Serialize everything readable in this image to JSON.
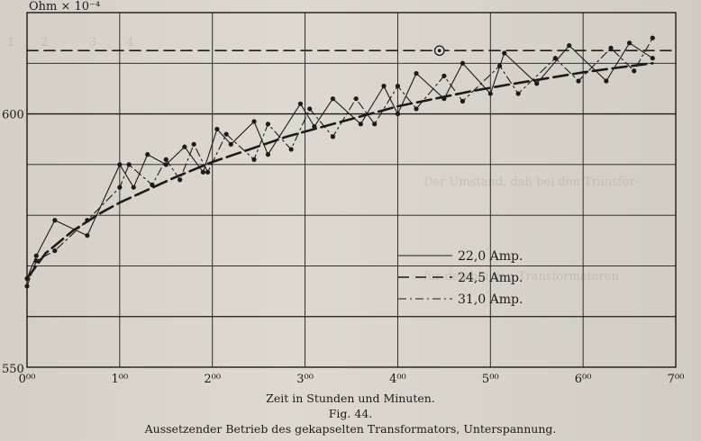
{
  "chart_data": {
    "type": "line",
    "ylabel": "Ohm × 10⁻⁴",
    "xlabel": "Zeit in Stunden und Minuten.",
    "xlim": [
      0,
      7
    ],
    "ylim": [
      550,
      620
    ],
    "y_ticks": [
      "550",
      "600"
    ],
    "x_ticks": [
      "0⁰⁰",
      "1⁰⁰",
      "2⁰⁰",
      "3⁰⁰",
      "4⁰⁰",
      "5⁰⁰",
      "6⁰⁰",
      "7⁰⁰"
    ],
    "grid": true,
    "legend_position": "right",
    "legend": [
      "22,0 Amp.",
      "24,5 Amp.",
      "31,0 Amp."
    ],
    "series": [
      {
        "name": "22,0 Amp.",
        "style": "solid",
        "marker": "dot",
        "x": [
          0.0,
          0.1,
          0.3,
          0.65,
          1.0,
          1.15,
          1.3,
          1.5,
          1.7,
          1.9,
          2.05,
          2.2,
          2.45,
          2.6,
          2.95,
          3.1,
          3.3,
          3.6,
          3.85,
          4.0,
          4.2,
          4.5,
          4.7,
          5.0,
          5.15,
          5.5,
          5.85,
          6.25,
          6.5,
          6.75
        ],
        "y": [
          567.5,
          572.0,
          579.0,
          576.0,
          590.0,
          585.5,
          592.0,
          590.0,
          593.5,
          588.5,
          597.0,
          594.0,
          598.5,
          592.0,
          602.0,
          597.5,
          603.0,
          598.0,
          605.5,
          600.0,
          608.0,
          603.0,
          610.0,
          604.0,
          612.0,
          606.0,
          613.5,
          606.5,
          614.0,
          611.0
        ]
      },
      {
        "name": "24,5 Amp.",
        "style": "dashed",
        "marker": "none",
        "x": [
          0.0,
          6.95
        ],
        "y": [
          612.5,
          612.5
        ],
        "special_point": {
          "x": 4.45,
          "y": 612.5,
          "marker": "circled-dot"
        }
      },
      {
        "name": "31,0 Amp.",
        "style": "dash-dot",
        "marker": "dot",
        "x": [
          0.0,
          0.1,
          0.3,
          0.65,
          1.0,
          1.1,
          1.35,
          1.5,
          1.65,
          1.8,
          1.95,
          2.15,
          2.45,
          2.6,
          2.85,
          3.05,
          3.3,
          3.55,
          3.75,
          4.0,
          4.2,
          4.5,
          4.7,
          5.1,
          5.3,
          5.7,
          5.95,
          6.3,
          6.55,
          6.75
        ],
        "y": [
          566.0,
          571.0,
          573.0,
          579.0,
          585.5,
          590.0,
          586.0,
          591.0,
          587.0,
          594.0,
          588.5,
          596.0,
          591.0,
          598.0,
          593.0,
          601.0,
          595.5,
          603.0,
          598.0,
          605.5,
          601.0,
          607.5,
          602.5,
          609.5,
          604.0,
          611.0,
          606.5,
          613.0,
          608.5,
          615.0
        ]
      },
      {
        "name": "envelope",
        "style": "long-dash-heavy",
        "marker": "none",
        "x": [
          0.0,
          0.2,
          0.5,
          0.8,
          1.0,
          1.3,
          1.6,
          2.0,
          2.4,
          2.8,
          3.2,
          3.6,
          4.0,
          4.4,
          4.8,
          5.2,
          5.6,
          6.0,
          6.4,
          6.75
        ],
        "y": [
          567.5,
          572.5,
          577.0,
          580.5,
          582.5,
          585.0,
          587.5,
          590.5,
          593.0,
          595.5,
          597.5,
          599.5,
          601.5,
          603.0,
          604.5,
          605.8,
          607.0,
          608.2,
          609.2,
          610.0
        ]
      }
    ]
  },
  "caption": {
    "fig": "Fig. 44.",
    "title": "Aussetzender Betrieb des gekapselten Transformators, Unterspannung."
  },
  "colors": {
    "ink": "#1d1b18",
    "paper": "#dcd8cf",
    "grid": "#2a2824"
  }
}
